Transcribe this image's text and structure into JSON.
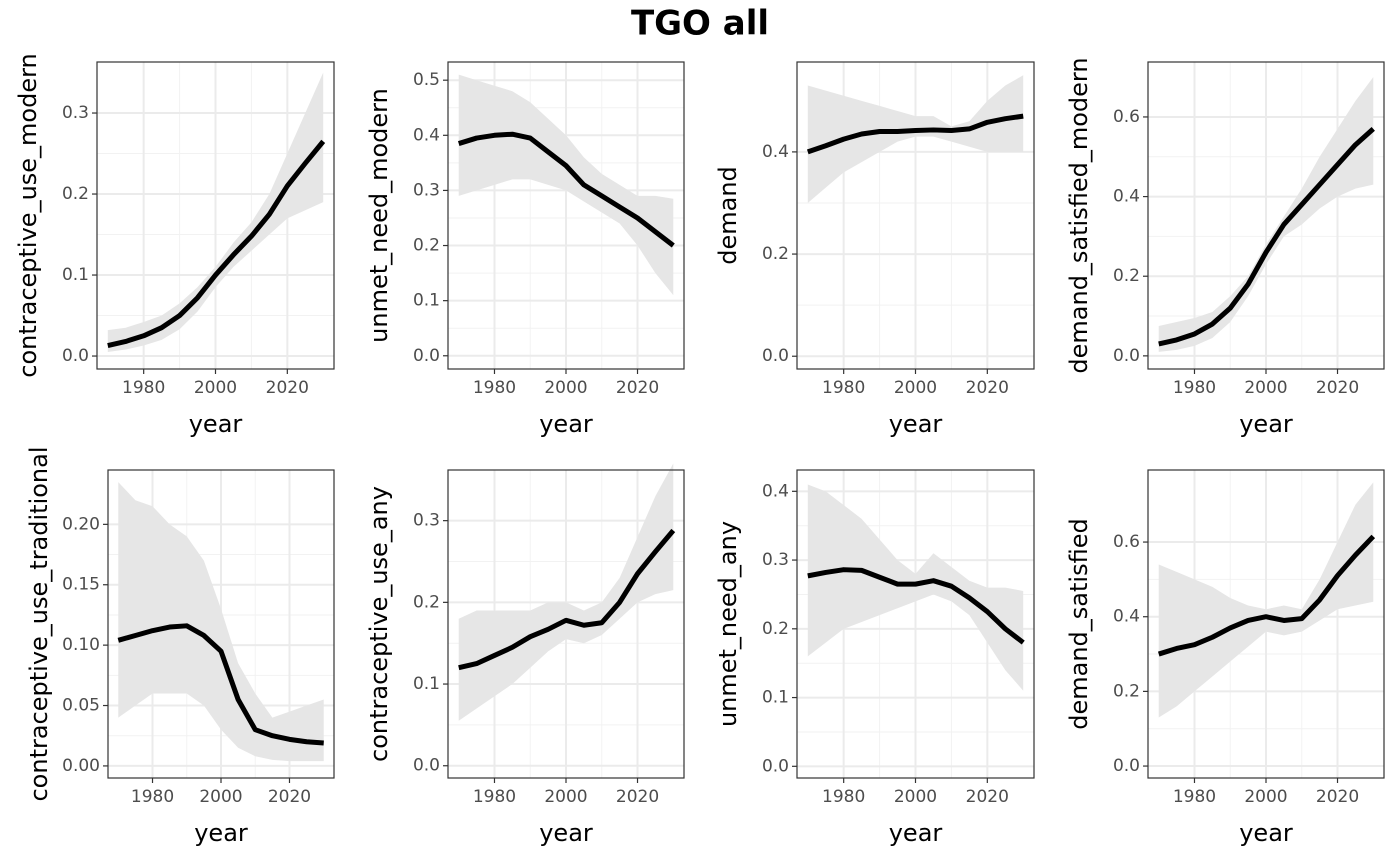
{
  "title": "TGO all",
  "chart_data": [
    {
      "type": "line",
      "ylabel": "contraceptive_use_modern",
      "xlabel": "year",
      "grid": true,
      "color": "#000000",
      "band_color": "#e6e6e6",
      "x": [
        1970,
        1975,
        1980,
        1985,
        1990,
        1995,
        2000,
        2005,
        2010,
        2015,
        2020,
        2025,
        2030
      ],
      "values": [
        0.013,
        0.018,
        0.025,
        0.035,
        0.05,
        0.072,
        0.1,
        0.125,
        0.148,
        0.175,
        0.21,
        0.238,
        0.265
      ],
      "lower": [
        0.005,
        0.008,
        0.013,
        0.02,
        0.033,
        0.055,
        0.085,
        0.11,
        0.13,
        0.15,
        0.17,
        0.18,
        0.19
      ],
      "upper": [
        0.032,
        0.035,
        0.042,
        0.05,
        0.065,
        0.085,
        0.11,
        0.14,
        0.165,
        0.2,
        0.25,
        0.3,
        0.35
      ],
      "xlim": [
        1967,
        2033
      ],
      "xticks": [
        1980,
        2000,
        2020
      ],
      "ylim": [
        -0.016,
        0.363
      ],
      "yticks": [
        {
          "value": 0,
          "label": "0.0"
        },
        0.1,
        0.2,
        0.3
      ]
    },
    {
      "type": "line",
      "ylabel": "unmet_need_modern",
      "xlabel": "year",
      "grid": true,
      "color": "#000000",
      "band_color": "#e6e6e6",
      "x": [
        1970,
        1975,
        1980,
        1985,
        1990,
        1995,
        2000,
        2005,
        2010,
        2015,
        2020,
        2025,
        2030
      ],
      "values": [
        0.385,
        0.395,
        0.4,
        0.402,
        0.395,
        0.37,
        0.345,
        0.31,
        0.29,
        0.27,
        0.25,
        0.225,
        0.2
      ],
      "lower": [
        0.29,
        0.3,
        0.31,
        0.32,
        0.32,
        0.31,
        0.3,
        0.28,
        0.26,
        0.24,
        0.2,
        0.15,
        0.11
      ],
      "upper": [
        0.51,
        0.5,
        0.49,
        0.48,
        0.46,
        0.43,
        0.4,
        0.36,
        0.33,
        0.31,
        0.29,
        0.29,
        0.285
      ],
      "xlim": [
        1967,
        2033
      ],
      "xticks": [
        1980,
        2000,
        2020
      ],
      "ylim": [
        -0.024,
        0.533
      ],
      "yticks": [
        {
          "value": 0,
          "label": "0.0"
        },
        0.1,
        0.2,
        0.3,
        0.4,
        0.5
      ]
    },
    {
      "type": "line",
      "ylabel": "demand",
      "xlabel": "year",
      "grid": true,
      "color": "#000000",
      "band_color": "#e6e6e6",
      "x": [
        1970,
        1975,
        1980,
        1985,
        1990,
        1995,
        2000,
        2005,
        2010,
        2015,
        2020,
        2025,
        2030
      ],
      "values": [
        0.4,
        0.412,
        0.425,
        0.435,
        0.44,
        0.44,
        0.442,
        0.443,
        0.442,
        0.445,
        0.458,
        0.465,
        0.47
      ],
      "lower": [
        0.3,
        0.33,
        0.36,
        0.38,
        0.4,
        0.42,
        0.43,
        0.43,
        0.42,
        0.41,
        0.4,
        0.4,
        0.4
      ],
      "upper": [
        0.53,
        0.52,
        0.51,
        0.5,
        0.49,
        0.48,
        0.47,
        0.47,
        0.45,
        0.46,
        0.5,
        0.53,
        0.55
      ],
      "xlim": [
        1967,
        2033
      ],
      "xticks": [
        1980,
        2000,
        2020
      ],
      "ylim": [
        -0.025,
        0.576
      ],
      "yticks": [
        {
          "value": 0,
          "label": "0.0"
        },
        0.2,
        0.4
      ]
    },
    {
      "type": "line",
      "ylabel": "demand_satisfied_modern",
      "xlabel": "year",
      "grid": true,
      "color": "#000000",
      "band_color": "#e6e6e6",
      "x": [
        1970,
        1975,
        1980,
        1985,
        1990,
        1995,
        2000,
        2005,
        2010,
        2015,
        2020,
        2025,
        2030
      ],
      "values": [
        0.03,
        0.04,
        0.055,
        0.08,
        0.12,
        0.18,
        0.26,
        0.33,
        0.38,
        0.43,
        0.48,
        0.53,
        0.57
      ],
      "lower": [
        0.01,
        0.015,
        0.025,
        0.045,
        0.085,
        0.15,
        0.23,
        0.3,
        0.33,
        0.37,
        0.4,
        0.42,
        0.43
      ],
      "upper": [
        0.075,
        0.085,
        0.095,
        0.11,
        0.15,
        0.2,
        0.28,
        0.35,
        0.42,
        0.5,
        0.57,
        0.64,
        0.7
      ],
      "xlim": [
        1967,
        2033
      ],
      "xticks": [
        1980,
        2000,
        2020
      ],
      "ylim": [
        -0.033,
        0.738
      ],
      "yticks": [
        {
          "value": 0,
          "label": "0.0"
        },
        0.2,
        0.4,
        0.6
      ]
    },
    {
      "type": "line",
      "ylabel": "contraceptive_use_traditional",
      "xlabel": "year",
      "grid": true,
      "color": "#000000",
      "band_color": "#e6e6e6",
      "x": [
        1970,
        1975,
        1980,
        1985,
        1990,
        1995,
        2000,
        2005,
        2010,
        2015,
        2020,
        2025,
        2030
      ],
      "values": [
        0.104,
        0.108,
        0.112,
        0.115,
        0.116,
        0.108,
        0.095,
        0.055,
        0.03,
        0.025,
        0.022,
        0.02,
        0.019
      ],
      "lower": [
        0.04,
        0.05,
        0.06,
        0.06,
        0.06,
        0.05,
        0.03,
        0.015,
        0.008,
        0.005,
        0.004,
        0.004,
        0.004
      ],
      "upper": [
        0.235,
        0.22,
        0.215,
        0.2,
        0.19,
        0.17,
        0.13,
        0.085,
        0.06,
        0.04,
        0.045,
        0.05,
        0.055
      ],
      "xlim": [
        1967,
        2033
      ],
      "xticks": [
        1980,
        2000,
        2020
      ],
      "ylim": [
        -0.01,
        0.245
      ],
      "yticks": [
        {
          "value": 0,
          "label": "0.00"
        },
        0.05,
        {
          "value": 0.1,
          "label": "0.10"
        },
        0.15,
        {
          "value": 0.2,
          "label": "0.20"
        }
      ]
    },
    {
      "type": "line",
      "ylabel": "contraceptive_use_any",
      "xlabel": "year",
      "grid": true,
      "color": "#000000",
      "band_color": "#e6e6e6",
      "x": [
        1970,
        1975,
        1980,
        1985,
        1990,
        1995,
        2000,
        2005,
        2010,
        2015,
        2020,
        2025,
        2030
      ],
      "values": [
        0.12,
        0.125,
        0.135,
        0.145,
        0.158,
        0.167,
        0.178,
        0.172,
        0.175,
        0.2,
        0.235,
        0.262,
        0.288
      ],
      "lower": [
        0.055,
        0.07,
        0.085,
        0.1,
        0.12,
        0.14,
        0.155,
        0.15,
        0.16,
        0.18,
        0.2,
        0.21,
        0.215
      ],
      "upper": [
        0.18,
        0.19,
        0.19,
        0.19,
        0.19,
        0.2,
        0.2,
        0.19,
        0.2,
        0.23,
        0.28,
        0.33,
        0.37
      ],
      "xlim": [
        1967,
        2033
      ],
      "xticks": [
        1980,
        2000,
        2020
      ],
      "ylim": [
        -0.015,
        0.362
      ],
      "yticks": [
        {
          "value": 0,
          "label": "0.0"
        },
        0.1,
        0.2,
        0.3
      ]
    },
    {
      "type": "line",
      "ylabel": "unmet_need_any",
      "xlabel": "year",
      "grid": true,
      "color": "#000000",
      "band_color": "#e6e6e6",
      "x": [
        1970,
        1975,
        1980,
        1985,
        1990,
        1995,
        2000,
        2005,
        2010,
        2015,
        2020,
        2025,
        2030
      ],
      "values": [
        0.277,
        0.282,
        0.286,
        0.285,
        0.275,
        0.265,
        0.265,
        0.27,
        0.262,
        0.245,
        0.225,
        0.2,
        0.18
      ],
      "lower": [
        0.16,
        0.18,
        0.2,
        0.21,
        0.22,
        0.23,
        0.24,
        0.25,
        0.24,
        0.22,
        0.18,
        0.14,
        0.11
      ],
      "upper": [
        0.41,
        0.4,
        0.38,
        0.36,
        0.33,
        0.3,
        0.28,
        0.31,
        0.29,
        0.27,
        0.26,
        0.26,
        0.255
      ],
      "xlim": [
        1967,
        2033
      ],
      "xticks": [
        1980,
        2000,
        2020
      ],
      "ylim": [
        -0.017,
        0.431
      ],
      "yticks": [
        {
          "value": 0,
          "label": "0.0"
        },
        0.1,
        0.2,
        0.3,
        0.4
      ]
    },
    {
      "type": "line",
      "ylabel": "demand_satisfied",
      "xlabel": "year",
      "grid": true,
      "color": "#000000",
      "band_color": "#e6e6e6",
      "x": [
        1970,
        1975,
        1980,
        1985,
        1990,
        1995,
        2000,
        2005,
        2010,
        2015,
        2020,
        2025,
        2030
      ],
      "values": [
        0.3,
        0.315,
        0.325,
        0.345,
        0.37,
        0.39,
        0.4,
        0.39,
        0.395,
        0.445,
        0.51,
        0.565,
        0.615
      ],
      "lower": [
        0.13,
        0.16,
        0.2,
        0.24,
        0.28,
        0.32,
        0.36,
        0.35,
        0.36,
        0.39,
        0.42,
        0.43,
        0.44
      ],
      "upper": [
        0.54,
        0.52,
        0.5,
        0.48,
        0.45,
        0.43,
        0.42,
        0.43,
        0.42,
        0.5,
        0.6,
        0.7,
        0.76
      ],
      "xlim": [
        1967,
        2033
      ],
      "xticks": [
        1980,
        2000,
        2020
      ],
      "ylim": [
        -0.032,
        0.793
      ],
      "yticks": [
        {
          "value": 0,
          "label": "0.0"
        },
        0.2,
        0.4,
        0.6
      ]
    }
  ]
}
